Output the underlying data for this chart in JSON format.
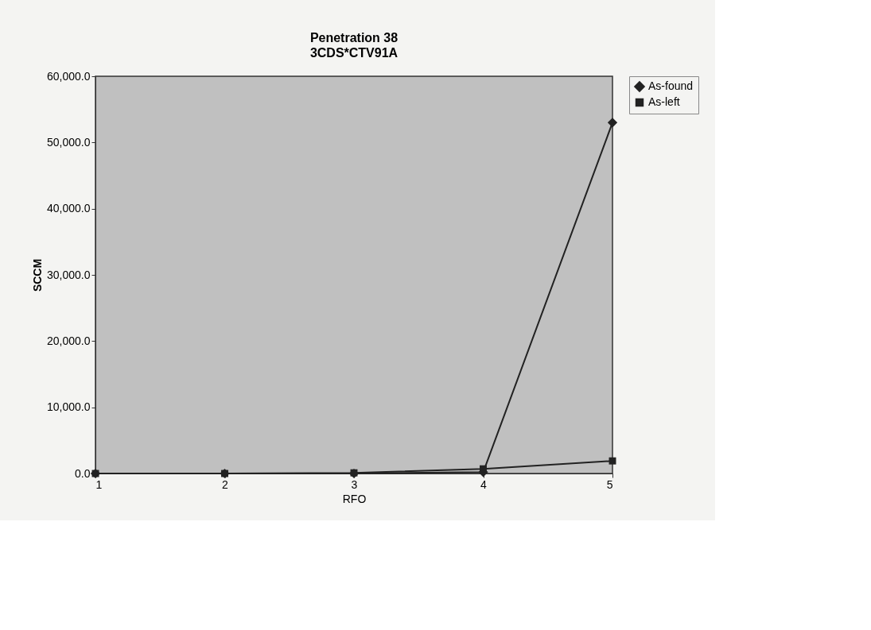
{
  "chart_data": {
    "type": "line",
    "title": "Penetration 38",
    "subtitle": "3CDS*CTV91A",
    "xlabel": "RFO",
    "ylabel": "SCCM",
    "categories": [
      "1",
      "2",
      "3",
      "4",
      "5"
    ],
    "series": [
      {
        "name": "As-found",
        "color": "#222222",
        "marker": "diamond",
        "values": [
          0,
          0,
          0,
          200,
          53000
        ]
      },
      {
        "name": "As-left",
        "color": "#222222",
        "marker": "square",
        "values": [
          0,
          0,
          100,
          700,
          1900
        ]
      }
    ],
    "ylim": [
      0,
      60000
    ],
    "yticks": [
      {
        "value": 0,
        "label": "0.0"
      },
      {
        "value": 10000,
        "label": "10,000.0"
      },
      {
        "value": 20000,
        "label": "20,000.0"
      },
      {
        "value": 30000,
        "label": "30,000.0"
      },
      {
        "value": 40000,
        "label": "40,000.0"
      },
      {
        "value": 50000,
        "label": "50,000.0"
      },
      {
        "value": 60000,
        "label": "60,000.0"
      }
    ],
    "grid": false,
    "legend": "right",
    "line_style": "solid"
  }
}
